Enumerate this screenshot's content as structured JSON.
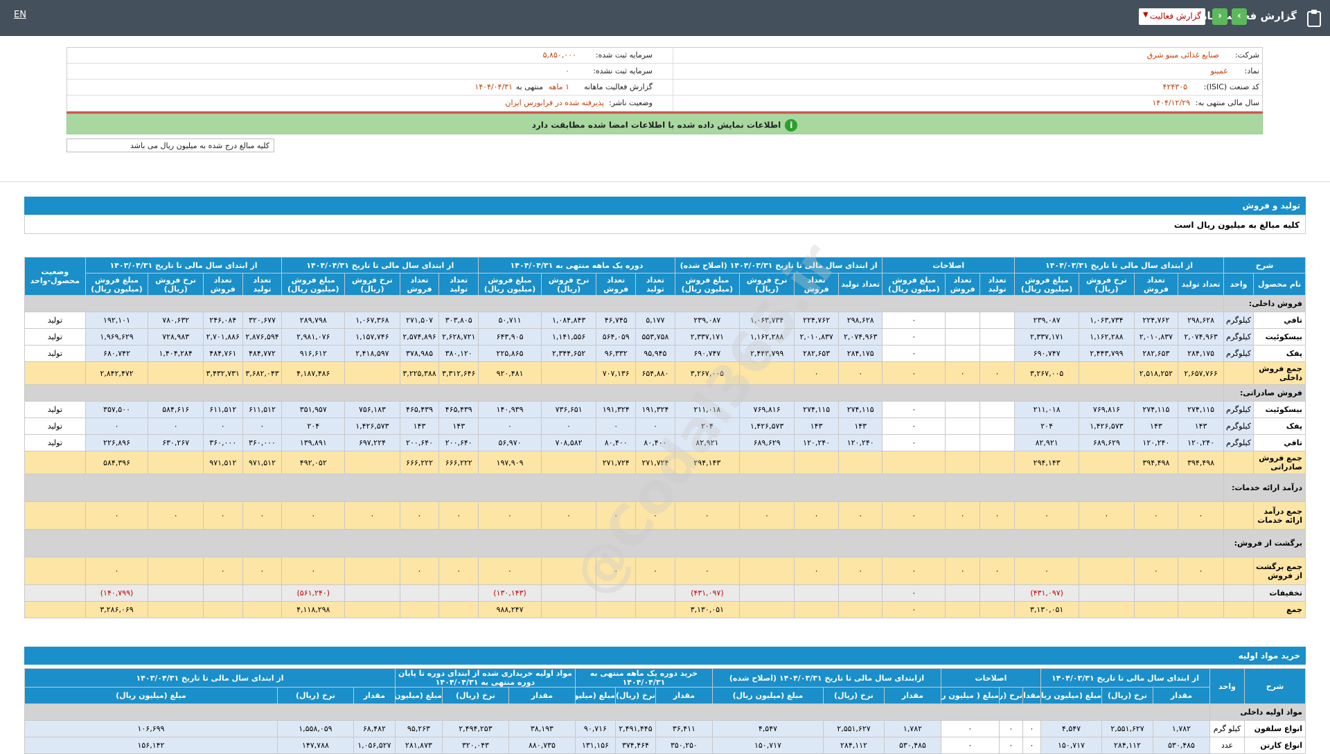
{
  "topbar": {
    "lang": "EN",
    "title": "گزارش فعالیت ماهانه",
    "select_value": "گزارش فعالیت",
    "prev": "›",
    "next": "‹"
  },
  "info": {
    "company_label": "شرکت:",
    "company": "صنایع غذائی مینو شرق",
    "symbol_label": "نماد:",
    "symbol": "غمینو",
    "isic_label": "کد صنعت (ISIC):",
    "isic": "۴۲۴۳۰۵",
    "fiscal_label": "سال مالی منتهی به:",
    "fiscal": "۱۴۰۴/۱۲/۲۹",
    "capital_label": "سرمایه ثبت شده:",
    "capital": "۵,۸۵۰,۰۰۰",
    "capital_unreg_label": "سرمایه ثبت نشده:",
    "capital_unreg": "۰",
    "report_label": "گزارش فعالیت ماهانه",
    "report_val": "۱ ماهه",
    "report_tail": "منتهی به",
    "report_date": "۱۴۰۴/۰۴/۳۱",
    "status_label": "وضعیت ناشر:",
    "status": "پذیرفته شده در فرابورس ایران"
  },
  "notice": "اطلاعات نمایش داده شده با اطلاعات امضا شده مطابقت دارد",
  "notice_icon": "i",
  "unit_note": "کلیه مبالغ درج شده به میلیون ریال می باشد",
  "watermark": "@Codal365.ir",
  "prod": {
    "title": "تولید و فروش",
    "sub": "کلیه مبالغ به میلیون ریال است",
    "groups": [
      "شرح",
      "از ابتدای سال مالی تا تاریخ ۱۴۰۴/۰۳/۳۱",
      "اصلاحات",
      "از ابتدای سال مالی تا تاریخ ۱۴۰۴/۰۳/۳۱ (اصلاح شده)",
      "دوره یک ماهه منتهی به ۱۴۰۴/۰۴/۳۱",
      "از ابتدای سال مالی تا تاریخ ۱۴۰۴/۰۴/۳۱",
      "از ابتدای سال مالی تا تاریخ ۱۴۰۳/۰۴/۳۱",
      "وضعیت محصول-واحد"
    ],
    "cols": [
      "نام محصول",
      "واحد",
      "تعداد تولید",
      "تعداد فروش",
      "نرخ فروش (ریال)",
      "مبلغ فروش (میلیون ریال)",
      "تعداد تولید",
      "تعداد فروش",
      "مبلغ فروش (میلیون ریال)",
      "تعداد تولید",
      "تعداد فروش",
      "نرخ فروش (ریال)",
      "مبلغ فروش (میلیون ریال)",
      "تعداد تولید",
      "تعداد فروش",
      "نرخ فروش (ریال)",
      "مبلغ فروش (میلیون ریال)",
      "تعداد تولید",
      "تعداد فروش",
      "نرخ فروش (ریال)",
      "مبلغ فروش (میلیون ریال)",
      "تعداد تولید",
      "تعداد فروش",
      "نرخ فروش (ریال)",
      "مبلغ فروش (میلیون ریال)"
    ],
    "rows": [
      {
        "k": "cat",
        "c": [
          "فروش داخلی:"
        ]
      },
      {
        "k": "data",
        "c": [
          "تافي",
          "کیلوگرم",
          "۲۹۸,۶۲۸",
          "۲۲۴,۷۶۲",
          "۱,۰۶۳,۷۳۴",
          "۲۳۹,۰۸۷",
          "",
          "",
          "۰",
          "۲۹۸,۶۲۸",
          "۲۲۴,۷۶۲",
          "۱,۰۶۳,۷۳۴",
          "۲۳۹,۰۸۷",
          "۵,۱۷۷",
          "۴۶,۷۴۵",
          "۱,۰۸۴,۸۴۳",
          "۵۰,۷۱۱",
          "۳۰۳,۸۰۵",
          "۲۷۱,۵۰۷",
          "۱,۰۶۷,۳۶۸",
          "۲۸۹,۷۹۸",
          "۳۲۰,۶۷۷",
          "۲۴۶,۰۸۴",
          "۷۸۰,۶۳۲",
          "۱۹۲,۱۰۱",
          "تولید"
        ]
      },
      {
        "k": "data",
        "c": [
          "بيسکوئيت",
          "کیلوگرم",
          "۲,۰۷۴,۹۶۳",
          "۲,۰۱۰,۸۳۷",
          "۱,۱۶۲,۲۸۸",
          "۲,۳۳۷,۱۷۱",
          "",
          "",
          "۰",
          "۲,۰۷۴,۹۶۳",
          "۲,۰۱۰,۸۳۷",
          "۱,۱۶۲,۲۸۸",
          "۲,۳۳۷,۱۷۱",
          "۵۵۳,۷۵۸",
          "۵۶۴,۰۵۹",
          "۱,۱۴۱,۵۵۶",
          "۶۴۳,۹۰۵",
          "۲,۶۲۸,۷۲۱",
          "۲,۵۷۴,۸۹۶",
          "۱,۱۵۷,۷۴۶",
          "۲,۹۸۱,۰۷۶",
          "۲,۸۷۶,۵۹۴",
          "۲,۷۰۱,۸۸۶",
          "۷۲۸,۹۸۳",
          "۱,۹۶۹,۶۲۹",
          "تولید"
        ]
      },
      {
        "k": "data",
        "c": [
          "پفک",
          "کیلوگرم",
          "۲۸۴,۱۷۵",
          "۲۸۲,۶۵۳",
          "۲,۴۴۳,۷۹۹",
          "۶۹۰,۷۴۷",
          "",
          "",
          "۰",
          "۲۸۴,۱۷۵",
          "۲۸۲,۶۵۳",
          "۲,۴۴۳,۷۹۹",
          "۶۹۰,۷۴۷",
          "۹۵,۹۴۵",
          "۹۶,۳۳۲",
          "۲,۳۴۴,۶۵۲",
          "۲۲۵,۸۶۵",
          "۳۸۰,۱۲۰",
          "۳۷۸,۹۸۵",
          "۲,۴۱۸,۵۹۷",
          "۹۱۶,۶۱۲",
          "۴۸۴,۷۷۲",
          "۴۸۴,۷۶۱",
          "۱,۴۰۴,۲۸۴",
          "۶۸۰,۷۴۲",
          "تولید"
        ]
      },
      {
        "k": "sum",
        "c": [
          "جمع فروش داخلی",
          "",
          "۲,۶۵۷,۷۶۶",
          "۲,۵۱۸,۲۵۲",
          "",
          "۳,۲۶۷,۰۰۵",
          "۰",
          "۰",
          "۰",
          "۰",
          "۰",
          "",
          "۳,۲۶۷,۰۰۵",
          "۶۵۴,۸۸۰",
          "۷۰۷,۱۳۶",
          "",
          "۹۲۰,۴۸۱",
          "۳,۳۱۲,۶۴۶",
          "۳,۲۲۵,۳۸۸",
          "",
          "۴,۱۸۷,۴۸۶",
          "۳,۶۸۲,۰۴۳",
          "۳,۴۳۲,۷۳۱",
          "",
          "۲,۸۴۲,۴۷۲",
          ""
        ]
      },
      {
        "k": "cat",
        "c": [
          "فروش صادراتی:"
        ]
      },
      {
        "k": "data",
        "c": [
          "بيسکوئيت",
          "کیلوگرم",
          "۲۷۴,۱۱۵",
          "۲۷۴,۱۱۵",
          "۷۶۹,۸۱۶",
          "۲۱۱,۰۱۸",
          "",
          "",
          "۰",
          "۲۷۴,۱۱۵",
          "۲۷۴,۱۱۵",
          "۷۶۹,۸۱۶",
          "۲۱۱,۰۱۸",
          "۱۹۱,۳۲۴",
          "۱۹۱,۳۲۴",
          "۷۳۶,۶۵۱",
          "۱۴۰,۹۳۹",
          "۴۶۵,۴۳۹",
          "۴۶۵,۴۳۹",
          "۷۵۶,۱۸۳",
          "۳۵۱,۹۵۷",
          "۶۱۱,۵۱۲",
          "۶۱۱,۵۱۲",
          "۵۸۴,۶۱۶",
          "۳۵۷,۵۰۰",
          "تولید"
        ]
      },
      {
        "k": "data",
        "c": [
          "پفک",
          "کیلوگرم",
          "۱۴۳",
          "۱۴۳",
          "۱,۴۲۶,۵۷۳",
          "۲۰۴",
          "",
          "",
          "۰",
          "۱۴۳",
          "۱۴۳",
          "۱,۴۲۶,۵۷۳",
          "۲۰۴",
          "۰",
          "۰",
          "۰",
          "۰",
          "۱۴۳",
          "۱۴۳",
          "۱,۴۲۶,۵۷۳",
          "۲۰۴",
          "۰",
          "۰",
          "۰",
          "۰",
          "تولید"
        ]
      },
      {
        "k": "data",
        "c": [
          "تافي",
          "کیلوگرم",
          "۱۲۰,۲۴۰",
          "۱۲۰,۲۴۰",
          "۶۸۹,۶۲۹",
          "۸۲,۹۲۱",
          "",
          "",
          "۰",
          "۱۲۰,۲۴۰",
          "۱۲۰,۲۴۰",
          "۶۸۹,۶۲۹",
          "۸۲,۹۲۱",
          "۸۰,۴۰۰",
          "۸۰,۴۰۰",
          "۷۰۸,۵۸۲",
          "۵۶,۹۷۰",
          "۲۰۰,۶۴۰",
          "۲۰۰,۶۴۰",
          "۶۹۷,۲۲۴",
          "۱۳۹,۸۹۱",
          "۳۶۰,۰۰۰",
          "۳۶۰,۰۰۰",
          "۶۳۰,۲۶۷",
          "۲۲۶,۸۹۶",
          "تولید"
        ]
      },
      {
        "k": "sum",
        "c": [
          "جمع فروش صادراتی",
          "",
          "۳۹۴,۴۹۸",
          "۳۹۴,۴۹۸",
          "",
          "۲۹۴,۱۴۳",
          "",
          "",
          "",
          "",
          "",
          "",
          "۲۹۴,۱۴۳",
          "۲۷۱,۷۲۴",
          "۲۷۱,۷۲۴",
          "",
          "۱۹۷,۹۰۹",
          "۶۶۶,۲۲۲",
          "۶۶۶,۲۲۲",
          "",
          "۴۹۲,۰۵۲",
          "۹۷۱,۵۱۲",
          "۹۷۱,۵۱۲",
          "",
          "۵۸۴,۳۹۶",
          ""
        ]
      },
      {
        "k": "cat",
        "c": [
          "درآمد ارائه خدمات:"
        ]
      },
      {
        "k": "sum",
        "c": [
          "جمع درآمد ارائه خدمات",
          "",
          "۰",
          "۰",
          "۰",
          "۰",
          "۰",
          "۰",
          "۰",
          "۰",
          "۰",
          "۰",
          "۰",
          "۰",
          "۰",
          "۰",
          "۰",
          "۰",
          "۰",
          "۰",
          "۰",
          "۰",
          "۰",
          "۰",
          "۰",
          ""
        ]
      },
      {
        "k": "cat",
        "c": [
          "برگشت از فروش:"
        ]
      },
      {
        "k": "sum",
        "c": [
          "جمع برگشت از فروش",
          "",
          "۰",
          "۰",
          "",
          "۰",
          "۰",
          "۰",
          "۰",
          "۰",
          "۰",
          "",
          "۰",
          "۰",
          "۰",
          "",
          "۰",
          "۰",
          "۰",
          "",
          "۰",
          "۰",
          "۰",
          "",
          "۰",
          ""
        ]
      },
      {
        "k": "disc",
        "c": [
          "تخفیفات",
          "",
          "",
          "",
          "",
          "(۴۳۱,۰۹۷)",
          "",
          "",
          "۰",
          "",
          "",
          "",
          "(۴۳۱,۰۹۷)",
          "",
          "",
          "",
          "(۱۳۰,۱۴۳)",
          "",
          "",
          "",
          "(۵۶۱,۲۴۰)",
          "",
          "",
          "",
          "(۱۴۰,۷۹۹)",
          ""
        ]
      },
      {
        "k": "tot",
        "c": [
          "جمع",
          "",
          "",
          "",
          "",
          "۳,۱۳۰,۰۵۱",
          "",
          "",
          "۰",
          "",
          "",
          "",
          "۳,۱۳۰,۰۵۱",
          "",
          "",
          "",
          "۹۸۸,۲۴۷",
          "",
          "",
          "",
          "۴,۱۱۸,۲۹۸",
          "",
          "",
          "",
          "۳,۲۸۶,۰۶۹",
          ""
        ]
      }
    ]
  },
  "raw": {
    "title": "خرید مواد اولیه",
    "groups": [
      "شرح",
      "واحد",
      "از ابتدای سال مالی تا تاریخ ۱۴۰۴/۰۳/۳۱",
      "اصلاحات",
      "ازابتدای سال مالی تا تاریخ ۱۴۰۴/۰۳/۳۱ (اصلاح شده)",
      "خرید دوره یک ماهه منتهی به ۱۴۰۴/۰۴/۳۱",
      "مواد اولیه خریداری شده از ابتدای دوره تا پایان دوره منتهی به ۱۴۰۴/۰۴/۳۱",
      "از ابتدای سال مالی تا تاریخ ۱۴۰۳/۰۴/۳۱"
    ],
    "cols": [
      "مقدار",
      "نرخ (ریال)",
      "مبلغ (میلیون ریال)",
      "مقدار",
      "نرخ (ریال)",
      "مبلغ ( میلیون ریال)",
      "مقدار",
      "نرخ (ریال)",
      "مبلغ (میلیون ریال)",
      "مقدار",
      "نرخ (ریال)",
      "مبلغ (میلیون ریال)",
      "مقدار",
      "نرخ (ریال)",
      "مبلغ (میلیون ریال)",
      "مقدار",
      "نرخ (ریال)",
      "مبلغ (میلیون ریال)"
    ],
    "rows": [
      {
        "k": "cat",
        "c": [
          "مواد اولیه داخلی"
        ]
      },
      {
        "k": "data",
        "c": [
          "انواع سلفون",
          "کیلو گرم",
          "۱,۷۸۲",
          "۲,۵۵۱,۶۲۷",
          "۴,۵۴۷",
          "۰",
          "۰",
          "۰",
          "۱,۷۸۲",
          "۲,۵۵۱,۶۲۷",
          "۴,۵۴۷",
          "۳۶,۴۱۱",
          "۲,۴۹۱,۴۴۵",
          "۹۰,۷۱۶",
          "۳۸,۱۹۳",
          "۲,۴۹۴,۲۵۳",
          "۹۵,۲۶۳",
          "۶۸,۴۸۲",
          "۱,۵۵۸,۰۵۹",
          "۱۰۶,۶۹۹"
        ]
      },
      {
        "k": "data",
        "c": [
          "انواع کارتن",
          "عدد",
          "۵۳۰,۴۸۵",
          "۲۸۴,۱۱۲",
          "۱۵۰,۷۱۷",
          "۰",
          "۰",
          "۰",
          "۵۳۰,۴۸۵",
          "۲۸۴,۱۱۲",
          "۱۵۰,۷۱۷",
          "۳۵۰,۲۵۰",
          "۳۷۴,۴۶۴",
          "۱۳۱,۱۵۶",
          "۸۸۰,۷۳۵",
          "۳۲۰,۰۴۳",
          "۲۸۱,۸۷۳",
          "۱,۰۵۶,۵۲۷",
          "۱۴۷,۷۸۸",
          "۱۵۶,۱۴۲"
        ]
      }
    ]
  }
}
